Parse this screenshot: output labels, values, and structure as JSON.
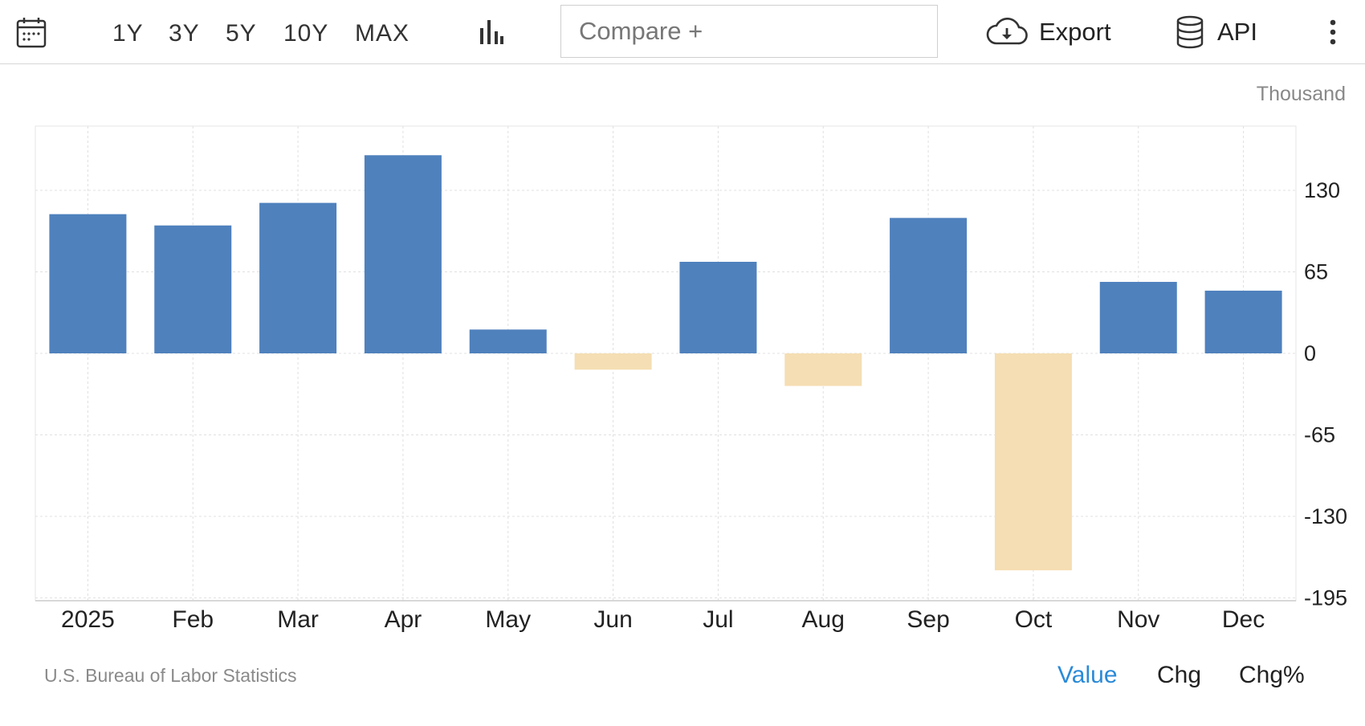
{
  "toolbar": {
    "ranges": [
      "1Y",
      "3Y",
      "5Y",
      "10Y",
      "MAX"
    ],
    "compare_placeholder": "Compare +",
    "export_label": "Export",
    "api_label": "API",
    "icons": {
      "calendar": "calendar-icon",
      "chart_type": "bar-chart-icon",
      "export": "cloud-download-icon",
      "api": "database-icon",
      "more": "more-vertical-icon"
    }
  },
  "footer": {
    "source": "U.S. Bureau of Labor Statistics",
    "views": [
      "Value",
      "Chg",
      "Chg%"
    ],
    "active_view": "Value"
  },
  "chart_data": {
    "type": "bar",
    "unit": "Thousand",
    "categories": [
      "2025",
      "Feb",
      "Mar",
      "Apr",
      "May",
      "Jun",
      "Jul",
      "Aug",
      "Sep",
      "Oct",
      "Nov",
      "Dec"
    ],
    "values": [
      111,
      102,
      120,
      158,
      19,
      -13,
      73,
      -26,
      108,
      -173,
      57,
      50
    ],
    "yticks": [
      130,
      65,
      0,
      -65,
      -130,
      -195
    ],
    "ylim": [
      -198,
      183
    ],
    "y_axis_side": "right",
    "grid": true,
    "colors": {
      "positive": "#4f81bd",
      "negative": "#f5deb3"
    }
  }
}
